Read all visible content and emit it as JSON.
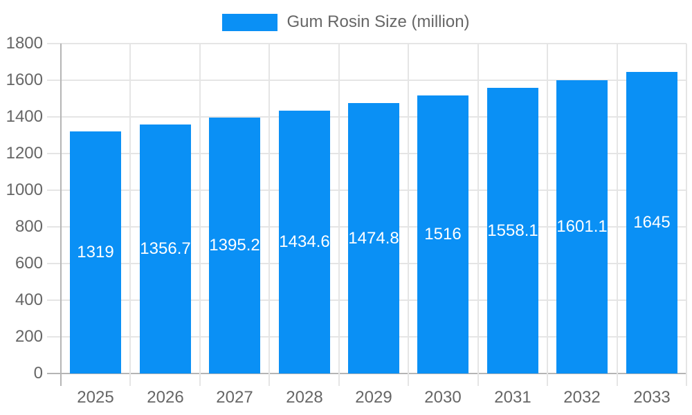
{
  "chart_data": {
    "type": "bar",
    "title": "",
    "legend": "Gum Rosin Size (million)",
    "legend_position": "top",
    "categories": [
      "2025",
      "2026",
      "2027",
      "2028",
      "2029",
      "2030",
      "2031",
      "2032",
      "2033"
    ],
    "series": [
      {
        "name": "Gum Rosin Size (million)",
        "values": [
          1319,
          1356.7,
          1395.2,
          1434.6,
          1474.8,
          1516,
          1558.1,
          1601.1,
          1645
        ]
      }
    ],
    "value_labels": [
      "1319",
      "1356.7",
      "1395.2",
      "1434.6",
      "1474.8",
      "1516",
      "1558.1",
      "1601.1",
      "1645"
    ],
    "value_label_position": "inside-center",
    "xlabel": "",
    "ylabel": "",
    "ylim": [
      0,
      1800
    ],
    "yticks": [
      0,
      200,
      400,
      600,
      800,
      1000,
      1200,
      1400,
      1600,
      1800
    ],
    "grid": "both"
  },
  "colors": {
    "bar": "#0a90f5",
    "grid": "#e5e5e5",
    "axis": "#b5b5b5",
    "tick_text": "#666666",
    "value_text": "#ffffff",
    "background": "#ffffff"
  }
}
